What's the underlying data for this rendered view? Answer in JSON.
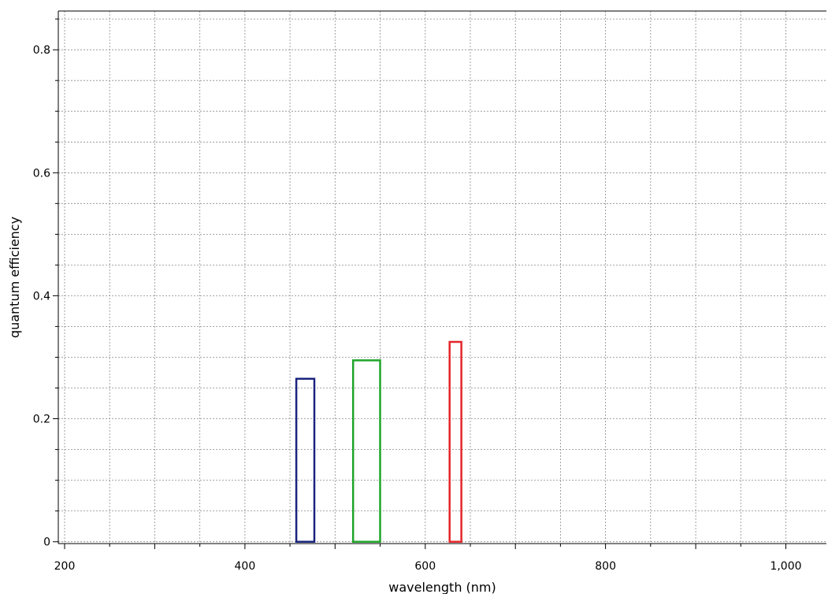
{
  "chart_data": {
    "type": "bar",
    "xlabel": "wavelength (nm)",
    "ylabel": "quantum efficiency",
    "xlim": [
      193,
      1045
    ],
    "ylim": [
      -0.003,
      0.863
    ],
    "x_ticks": [
      200,
      400,
      600,
      800,
      1000
    ],
    "x_tick_labels": [
      "200",
      "400",
      "600",
      "800",
      "1,000"
    ],
    "x_minor_step": 50,
    "y_ticks": [
      0,
      0.2,
      0.4,
      0.6,
      0.8
    ],
    "y_tick_labels": [
      "0",
      "0.2",
      "0.4",
      "0.6",
      "0.8"
    ],
    "y_minor_step": 0.05,
    "grid": true,
    "series": [
      {
        "x0": 457,
        "x1": 477,
        "value": 0.265,
        "color": "#1a237e"
      },
      {
        "x0": 520,
        "x1": 550,
        "value": 0.295,
        "color": "#1fa52a"
      },
      {
        "x0": 627,
        "x1": 640,
        "value": 0.325,
        "color": "#e3262a"
      }
    ]
  }
}
